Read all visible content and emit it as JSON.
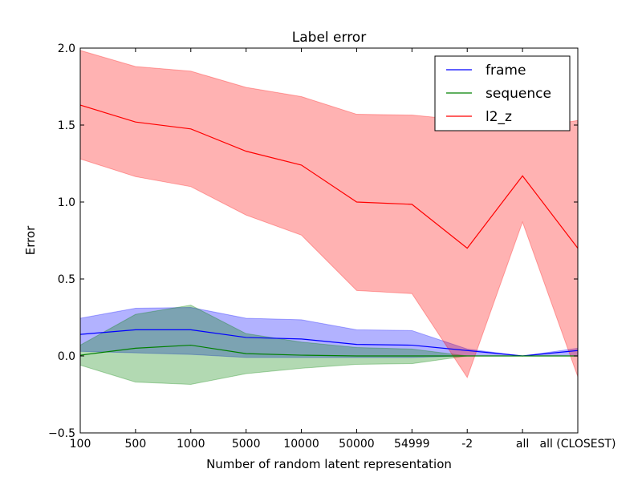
{
  "chart_data": {
    "type": "line",
    "title": "Label error",
    "xlabel": "Number of random latent representation",
    "ylabel": "Error",
    "categories": [
      "100",
      "500",
      "1000",
      "5000",
      "10000",
      "50000",
      "54999",
      "-2",
      "all",
      "all (CLOSEST)"
    ],
    "ylim": [
      -0.5,
      2.0
    ],
    "yticks": [
      -0.5,
      0.0,
      0.5,
      1.0,
      1.5,
      2.0
    ],
    "ytick_labels": [
      "−0.5",
      "0.0",
      "0.5",
      "1.0",
      "1.5",
      "2.0"
    ],
    "grid": false,
    "legend_position": "upper-right",
    "series": [
      {
        "name": "frame",
        "color": "#0000ff",
        "values": [
          0.14,
          0.17,
          0.17,
          0.12,
          0.11,
          0.075,
          0.07,
          0.035,
          0.0,
          0.035
        ],
        "lower": [
          0.03,
          0.02,
          0.01,
          -0.01,
          -0.01,
          -0.01,
          -0.01,
          0.0,
          0.0,
          0.0
        ],
        "upper": [
          0.245,
          0.31,
          0.315,
          0.245,
          0.235,
          0.17,
          0.165,
          0.045,
          0.0,
          0.05
        ]
      },
      {
        "name": "sequence",
        "color": "#008000",
        "values": [
          0.005,
          0.05,
          0.07,
          0.015,
          0.005,
          0.0,
          0.0,
          0.0,
          0.0,
          0.0
        ],
        "lower": [
          -0.06,
          -0.17,
          -0.185,
          -0.115,
          -0.08,
          -0.055,
          -0.05,
          0.0,
          0.0,
          0.0
        ],
        "upper": [
          0.07,
          0.27,
          0.33,
          0.145,
          0.09,
          0.055,
          0.045,
          0.0,
          0.0,
          0.0
        ]
      },
      {
        "name": "l2_z",
        "color": "#ff0000",
        "values": [
          1.63,
          1.52,
          1.475,
          1.33,
          1.24,
          1.0,
          0.985,
          0.7,
          1.17,
          0.7
        ],
        "lower": [
          1.28,
          1.165,
          1.1,
          0.915,
          0.785,
          0.425,
          0.405,
          -0.14,
          0.87,
          -0.135
        ],
        "upper": [
          1.985,
          1.88,
          1.85,
          1.745,
          1.685,
          1.57,
          1.565,
          1.53,
          1.47,
          1.53
        ]
      }
    ]
  }
}
